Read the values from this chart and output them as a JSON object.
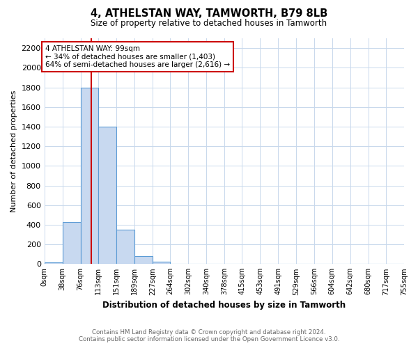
{
  "title": "4, ATHELSTAN WAY, TAMWORTH, B79 8LB",
  "subtitle": "Size of property relative to detached houses in Tamworth",
  "xlabel": "Distribution of detached houses by size in Tamworth",
  "ylabel": "Number of detached properties",
  "bin_edges": [
    0,
    38,
    76,
    113,
    151,
    189,
    227,
    264,
    302,
    340,
    378,
    415,
    453,
    491,
    529,
    566,
    604,
    642,
    680,
    717,
    755
  ],
  "bar_heights": [
    15,
    430,
    1800,
    1400,
    350,
    80,
    25,
    5,
    0,
    0,
    0,
    0,
    0,
    0,
    0,
    0,
    0,
    0,
    0,
    0
  ],
  "bar_color": "#c8d9f0",
  "bar_edgecolor": "#5b9bd5",
  "property_size": 99,
  "red_line_color": "#cc0000",
  "annotation_line1": "4 ATHELSTAN WAY: 99sqm",
  "annotation_line2": "← 34% of detached houses are smaller (1,403)",
  "annotation_line3": "64% of semi-detached houses are larger (2,616) →",
  "annotation_box_edgecolor": "#cc0000",
  "ylim": [
    0,
    2300
  ],
  "yticks": [
    0,
    200,
    400,
    600,
    800,
    1000,
    1200,
    1400,
    1600,
    1800,
    2000,
    2200
  ],
  "tick_labels": [
    "0sqm",
    "38sqm",
    "76sqm",
    "113sqm",
    "151sqm",
    "189sqm",
    "227sqm",
    "264sqm",
    "302sqm",
    "340sqm",
    "378sqm",
    "415sqm",
    "453sqm",
    "491sqm",
    "529sqm",
    "566sqm",
    "604sqm",
    "642sqm",
    "680sqm",
    "717sqm",
    "755sqm"
  ],
  "footer_text": "Contains HM Land Registry data © Crown copyright and database right 2024.\nContains public sector information licensed under the Open Government Licence v3.0.",
  "bg_color": "#ffffff",
  "grid_color": "#c8d8ec"
}
